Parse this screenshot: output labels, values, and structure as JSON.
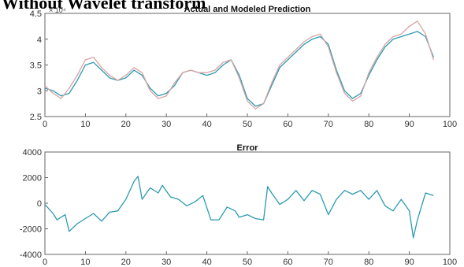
{
  "heading": "Without Wavelet transform",
  "colors": {
    "actual": "#2a9bb0",
    "modeled": "#d9a3a3",
    "error": "#2a9bb0",
    "axis": "#666666"
  },
  "chart_data": [
    {
      "type": "line",
      "title": "Actual and Modeled Prediction",
      "xlabel": "",
      "ylabel": "",
      "exponent_label": "× 10⁴",
      "xlim": [
        0,
        100
      ],
      "ylim": [
        2.5,
        4.5
      ],
      "xticks": [
        "0",
        "10",
        "20",
        "30",
        "40",
        "50",
        "60",
        "70",
        "80",
        "90",
        "100"
      ],
      "yticks": [
        "2.5",
        "3",
        "3.5",
        "4",
        "4.5"
      ],
      "x": [
        0,
        2,
        4,
        6,
        8,
        10,
        12,
        14,
        16,
        18,
        20,
        22,
        24,
        26,
        28,
        30,
        32,
        34,
        36,
        38,
        40,
        42,
        44,
        46,
        48,
        50,
        52,
        54,
        56,
        58,
        60,
        62,
        64,
        66,
        68,
        70,
        72,
        74,
        76,
        78,
        80,
        82,
        84,
        86,
        88,
        90,
        92,
        94,
        96
      ],
      "series": [
        {
          "values": [
            3.05,
            3.0,
            2.9,
            2.95,
            3.2,
            3.5,
            3.55,
            3.4,
            3.25,
            3.2,
            3.25,
            3.4,
            3.3,
            3.05,
            2.9,
            2.95,
            3.1,
            3.35,
            3.4,
            3.35,
            3.3,
            3.35,
            3.5,
            3.6,
            3.3,
            2.85,
            2.7,
            2.75,
            3.1,
            3.45,
            3.6,
            3.75,
            3.9,
            4.0,
            4.05,
            3.9,
            3.4,
            3.0,
            2.85,
            2.95,
            3.3,
            3.6,
            3.85,
            4.0,
            4.05,
            4.1,
            4.15,
            4.05,
            3.65
          ]
        },
        {
          "values": [
            3.1,
            2.95,
            2.85,
            3.05,
            3.3,
            3.6,
            3.65,
            3.45,
            3.3,
            3.2,
            3.3,
            3.45,
            3.35,
            3.0,
            2.85,
            2.9,
            3.15,
            3.35,
            3.4,
            3.35,
            3.35,
            3.4,
            3.55,
            3.6,
            3.25,
            2.8,
            2.65,
            2.75,
            3.15,
            3.5,
            3.65,
            3.8,
            3.95,
            4.05,
            4.1,
            3.85,
            3.35,
            2.95,
            2.8,
            2.9,
            3.35,
            3.65,
            3.9,
            4.05,
            4.1,
            4.25,
            4.35,
            4.1,
            3.6
          ]
        }
      ]
    },
    {
      "type": "line",
      "title": "Error",
      "xlabel": "",
      "ylabel": "",
      "xlim": [
        0,
        100
      ],
      "ylim": [
        -4000,
        4000
      ],
      "xticks": [
        "0",
        "10",
        "20",
        "30",
        "40",
        "50",
        "60",
        "70",
        "80",
        "90",
        "100"
      ],
      "yticks": [
        "-4000",
        "-2000",
        "0",
        "2000",
        "4000"
      ],
      "x": [
        0,
        2,
        3,
        5,
        6,
        8,
        10,
        12,
        14,
        16,
        18,
        20,
        22,
        23,
        24,
        26,
        28,
        29,
        31,
        33,
        35,
        37,
        39,
        41,
        43,
        45,
        47,
        48,
        50,
        52,
        54,
        55,
        56,
        58,
        60,
        62,
        64,
        66,
        68,
        70,
        72,
        74,
        76,
        78,
        80,
        82,
        84,
        86,
        88,
        90,
        91,
        92,
        94,
        96
      ],
      "series": [
        {
          "values": [
            -100,
            -800,
            -1300,
            -900,
            -2200,
            -1600,
            -1200,
            -800,
            -1400,
            -700,
            -600,
            300,
            1700,
            2100,
            300,
            1200,
            800,
            1400,
            500,
            300,
            -200,
            100,
            600,
            -1300,
            -1300,
            -300,
            -600,
            -1100,
            -900,
            -1200,
            -1300,
            1300,
            800,
            -100,
            300,
            1000,
            200,
            1000,
            700,
            -900,
            300,
            1000,
            700,
            1000,
            300,
            1000,
            -200,
            -600,
            300,
            -600,
            -2700,
            -1300,
            800,
            600
          ]
        }
      ]
    }
  ]
}
